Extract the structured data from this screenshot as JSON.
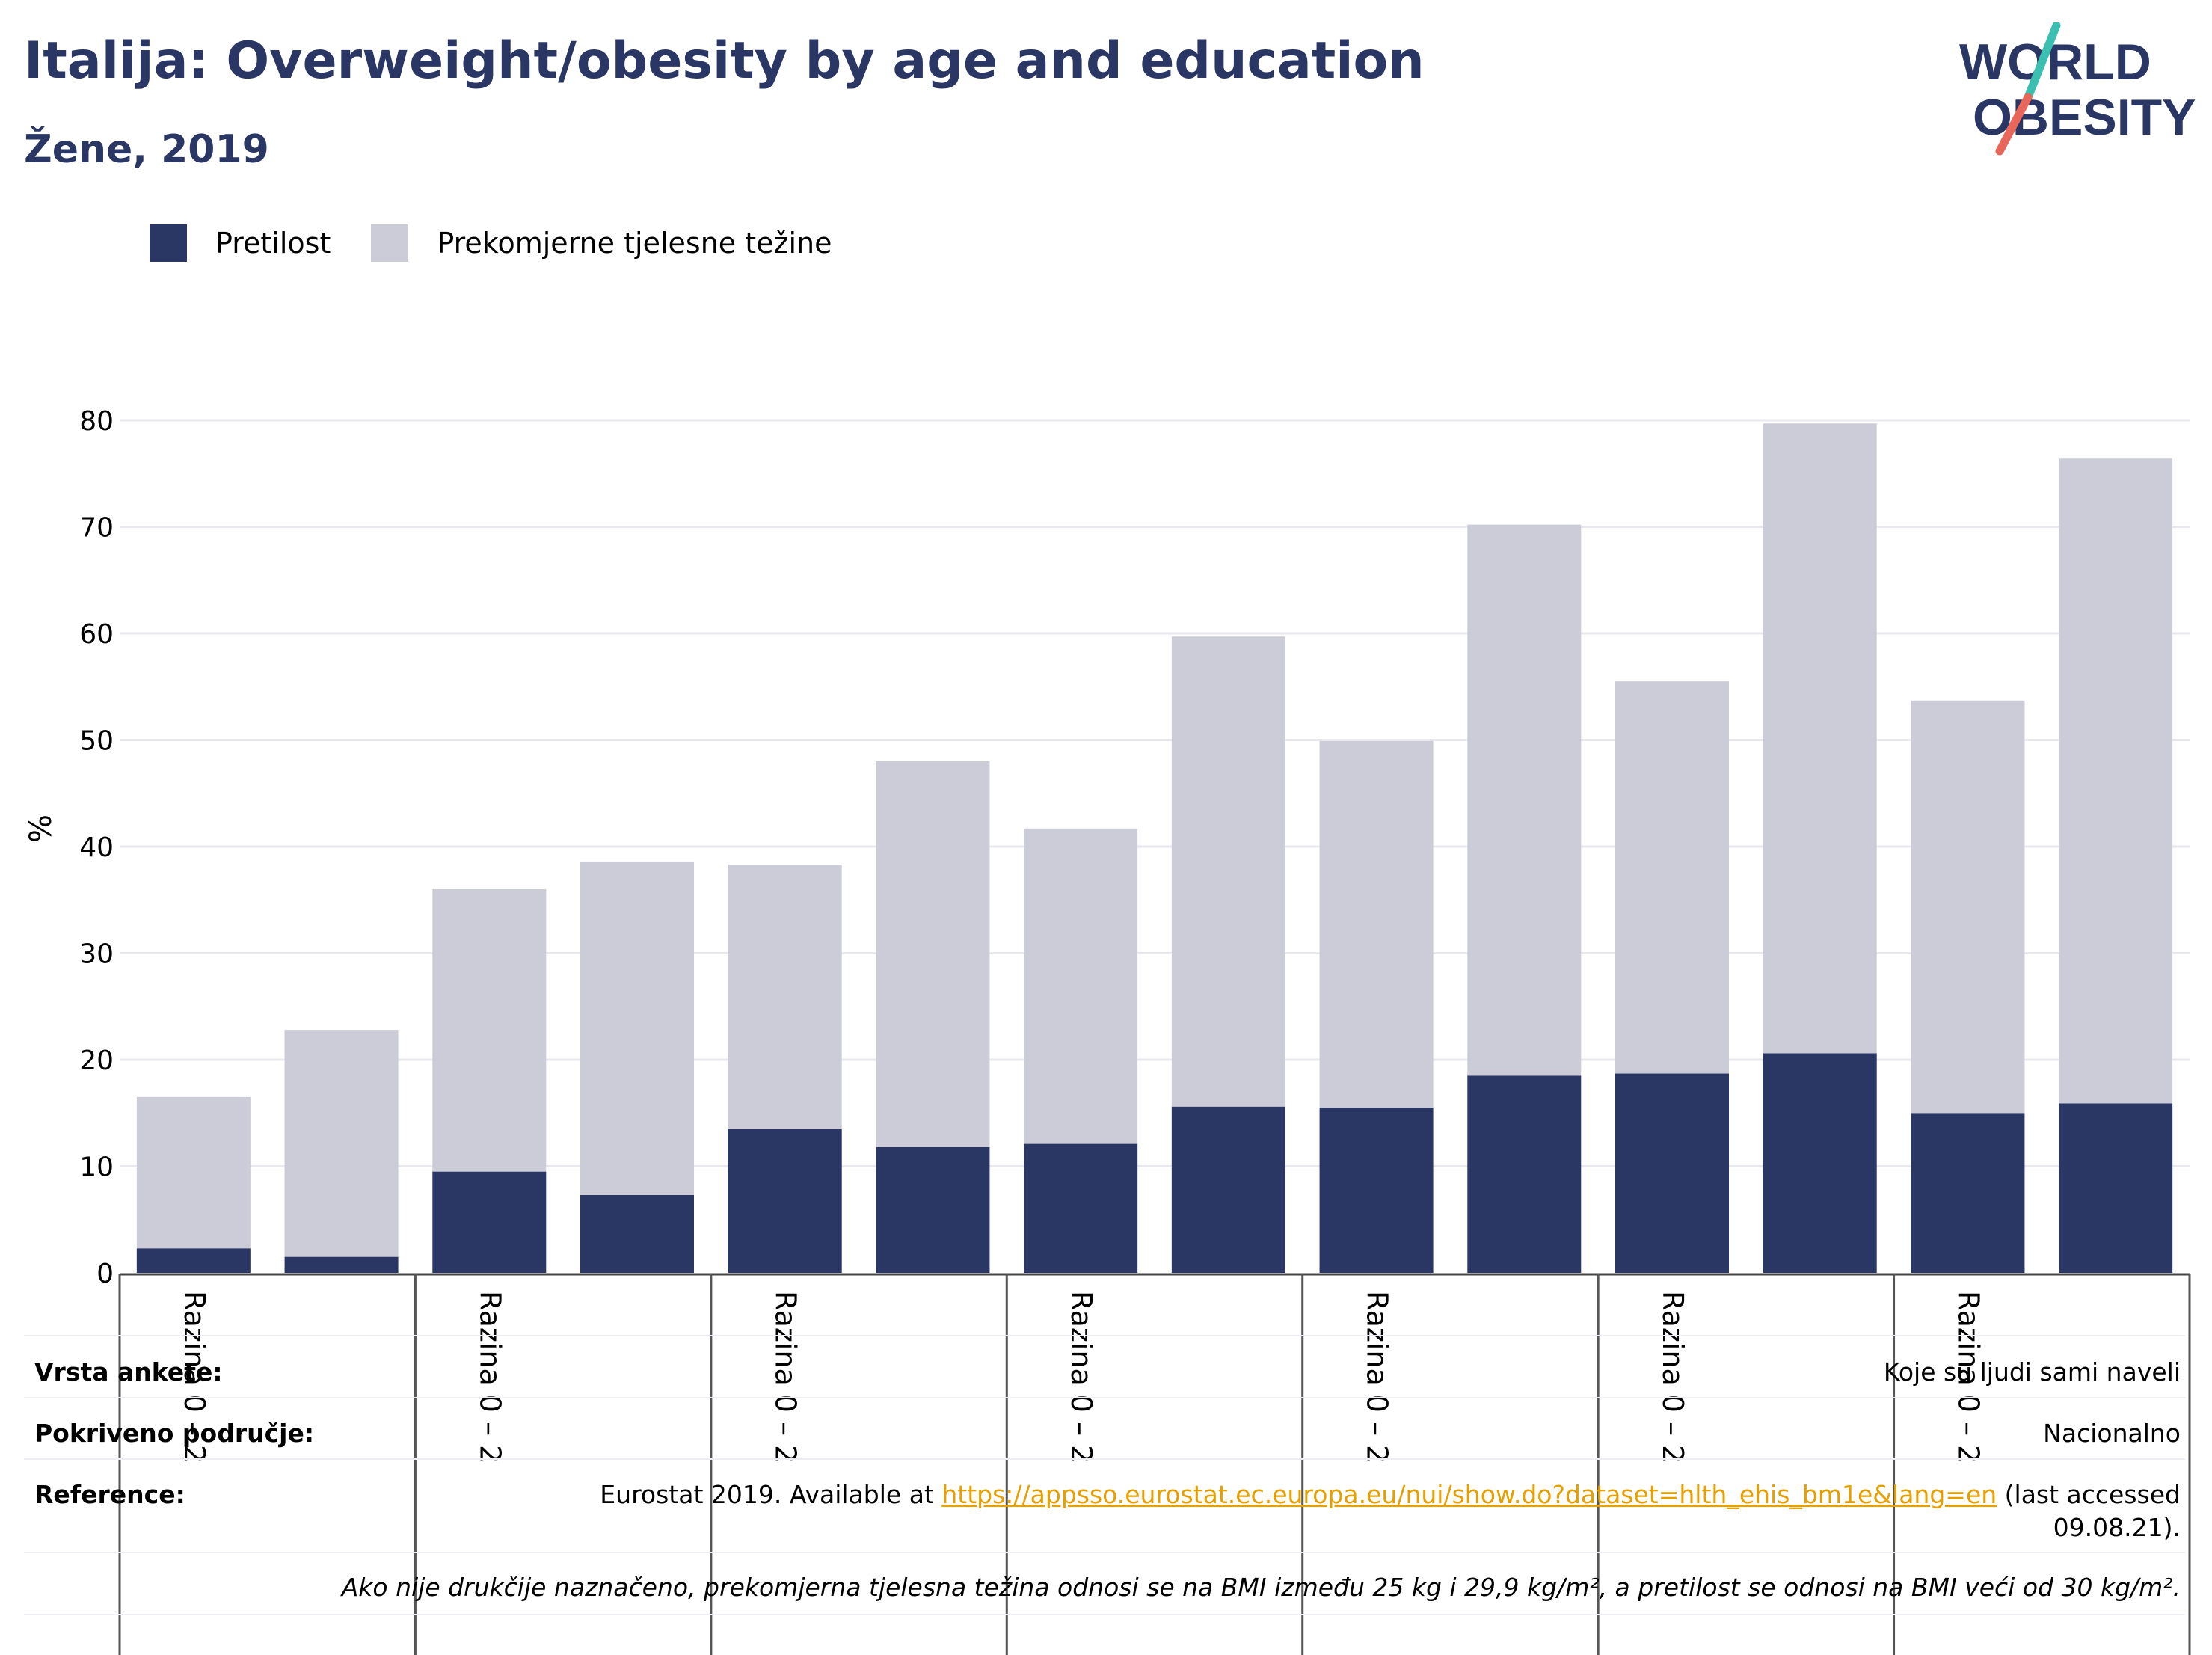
{
  "header": {
    "title": "Italija: Overweight/obesity by age and education",
    "subtitle": "Žene, 2019"
  },
  "logo": {
    "line1": "WORLD",
    "line2": "OBESITY",
    "text_color": "#2a3663",
    "slash_colors": [
      "#3bbfb0",
      "#e8665a"
    ]
  },
  "chart_data": {
    "type": "bar",
    "stacked": true,
    "ylabel": "%",
    "ylim": [
      0,
      80
    ],
    "yticks": [
      0,
      10,
      20,
      30,
      40,
      50,
      60,
      70,
      80
    ],
    "grid": true,
    "legend_position": "top-left",
    "categories": [
      "Razina 0 – 2",
      "",
      "Razina 0 – 2",
      "",
      "Razina 0 – 2",
      "",
      "Razina 0 – 2",
      "",
      "Razina 0 – 2",
      "",
      "Razina 0 – 2",
      "",
      "Razina 0 – 2",
      ""
    ],
    "group_labels": [
      "Razina 0 – 2",
      "Razina 0 – 2",
      "Razina 0 – 2",
      "Razina 0 – 2",
      "Razina 0 – 2",
      "Razina 0 – 2",
      "Razina 0 – 2"
    ],
    "series": [
      {
        "name": "Pretilost",
        "color": "#2a3663",
        "values": [
          2.3,
          1.5,
          9.5,
          7.3,
          13.5,
          11.8,
          12.1,
          15.6,
          15.5,
          18.5,
          18.7,
          20.6,
          15.0,
          15.9
        ]
      },
      {
        "name": "Prekomjerne tjelesne težine",
        "color": "#cbccd8",
        "values": [
          14.2,
          21.3,
          26.5,
          31.3,
          24.8,
          36.2,
          29.6,
          44.1,
          34.4,
          51.7,
          36.8,
          59.1,
          38.7,
          60.5
        ]
      }
    ]
  },
  "info": {
    "survey_type_label": "Vrsta ankete:",
    "survey_type_value": "Koje su ljudi sami naveli",
    "coverage_label": "Pokriveno područje:",
    "coverage_value": "Nacionalno",
    "reference_label": "Reference:",
    "reference_prefix": "Eurostat 2019. Available at ",
    "reference_link": "https://appsso.eurostat.ec.europa.eu/nui/show.do?dataset=hlth_ehis_bm1e&lang=en",
    "reference_suffix": " (last accessed",
    "reference_date": "09.08.21).",
    "note": "Ako nije drukčije naznačeno, prekomjerna tjelesna težina odnosi se na BMI između 25 kg i 29,9 kg/m², a pretilost se odnosi na BMI veći od 30 kg/m²."
  }
}
